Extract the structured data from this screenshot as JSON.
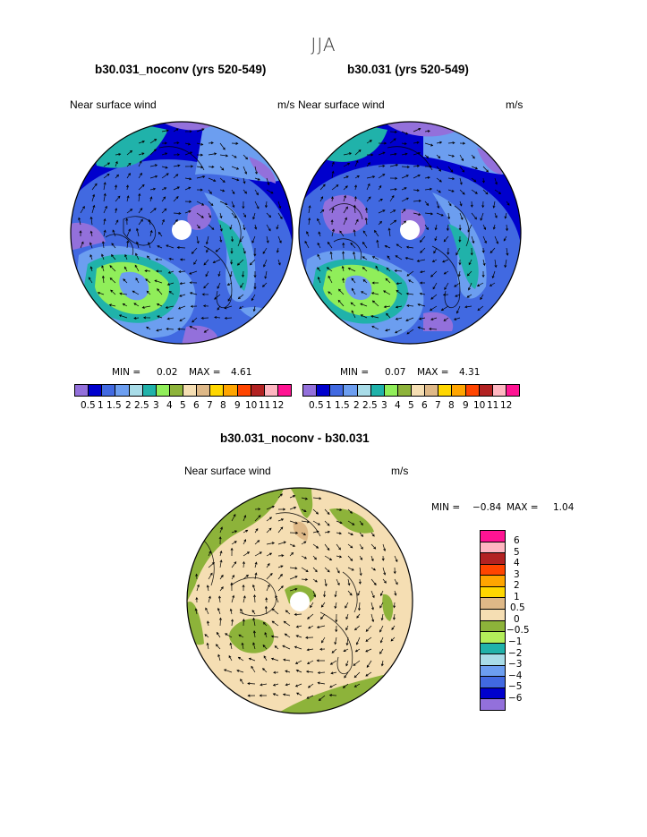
{
  "page": {
    "season": "JJA",
    "panel1": {
      "title": "b30.031_noconv (yrs 520-549)",
      "field_label": "Near surface wind",
      "units": "m/s",
      "min_label": "MIN =",
      "min_value": "0.02",
      "max_label": "MAX =",
      "max_value": "4.61"
    },
    "panel2": {
      "title": "b30.031 (yrs 520-549)",
      "field_label": "Near surface wind",
      "units": "m/s",
      "min_label": "MIN =",
      "min_value": "0.07",
      "max_label": "MAX =",
      "max_value": "4.31"
    },
    "panel3": {
      "title": "b30.031_noconv - b30.031",
      "field_label": "Near surface wind",
      "units": "m/s",
      "min_label": "MIN =",
      "min_value": "−0.84",
      "max_label": "MAX =",
      "max_value": "1.04"
    },
    "abs_scale": {
      "levels": [
        "0.5",
        "1",
        "1.5",
        "2",
        "2.5",
        "3",
        "4",
        "5",
        "6",
        "7",
        "8",
        "9",
        "10",
        "11",
        "12"
      ],
      "colors": [
        "#9370db",
        "#0000cd",
        "#4169e1",
        "#6c9ef0",
        "#a8dce8",
        "#20b2aa",
        "#90ee5a",
        "#8db33a",
        "#f5deb3",
        "#deb887",
        "#ffd700",
        "#ffa500",
        "#ff4500",
        "#b22222",
        "#ffb6c1",
        "#ff1493"
      ]
    },
    "diff_scale": {
      "levels": [
        "6",
        "5",
        "4",
        "3",
        "2",
        "1",
        "0.5",
        "0",
        "−0.5",
        "−1",
        "−2",
        "−3",
        "−4",
        "−5",
        "−6"
      ],
      "colors": [
        "#ff1493",
        "#ffb6c1",
        "#b22222",
        "#ff4500",
        "#ffa500",
        "#ffd700",
        "#deb887",
        "#f5deb3",
        "#8db33a",
        "#b3ee5a",
        "#20b2aa",
        "#a8dce8",
        "#6c9ef0",
        "#4169e1",
        "#0000cd",
        "#9370db"
      ]
    }
  }
}
